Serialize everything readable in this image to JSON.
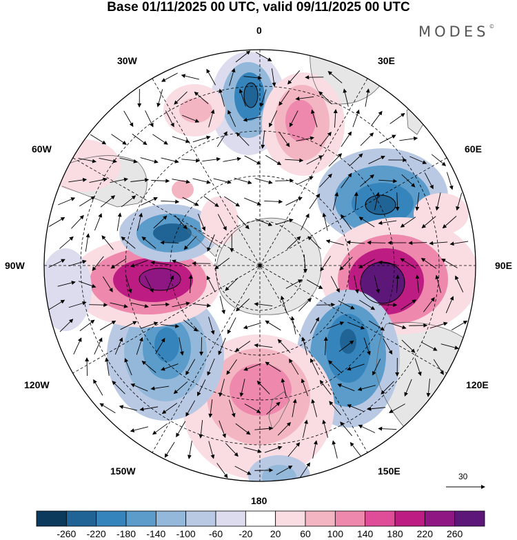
{
  "title": "Base 01/11/2025 00 UTC, valid 09/11/2025 00 UTC",
  "brand": "MODES",
  "brand_mark": "©",
  "longitude_labels": {
    "top": "0",
    "top_left": "30W",
    "top_right": "30E",
    "upper_left": "60W",
    "upper_right": "60E",
    "left": "90W",
    "right": "90E",
    "lower_left": "120W",
    "lower_right": "120E",
    "bottom_left": "150W",
    "bottom_right": "150E",
    "bottom": "180"
  },
  "vector_reference": "30",
  "colorbar": {
    "ticks": [
      "-260",
      "-220",
      "-180",
      "-140",
      "-100",
      "-60",
      "-20",
      "20",
      "60",
      "100",
      "140",
      "180",
      "220",
      "260"
    ],
    "colors": [
      "#0c3a5c",
      "#1f6494",
      "#3584bb",
      "#5b9ccb",
      "#93b8da",
      "#bac9e3",
      "#dcdcee",
      "#ffffff",
      "#f9dde2",
      "#f4b5c3",
      "#ee88ac",
      "#df4c97",
      "#bd1c83",
      "#8f1783",
      "#5c1778"
    ]
  },
  "map_colors": {
    "land": "#e6e6e6",
    "coast": "#666666",
    "grid": "#000000"
  }
}
